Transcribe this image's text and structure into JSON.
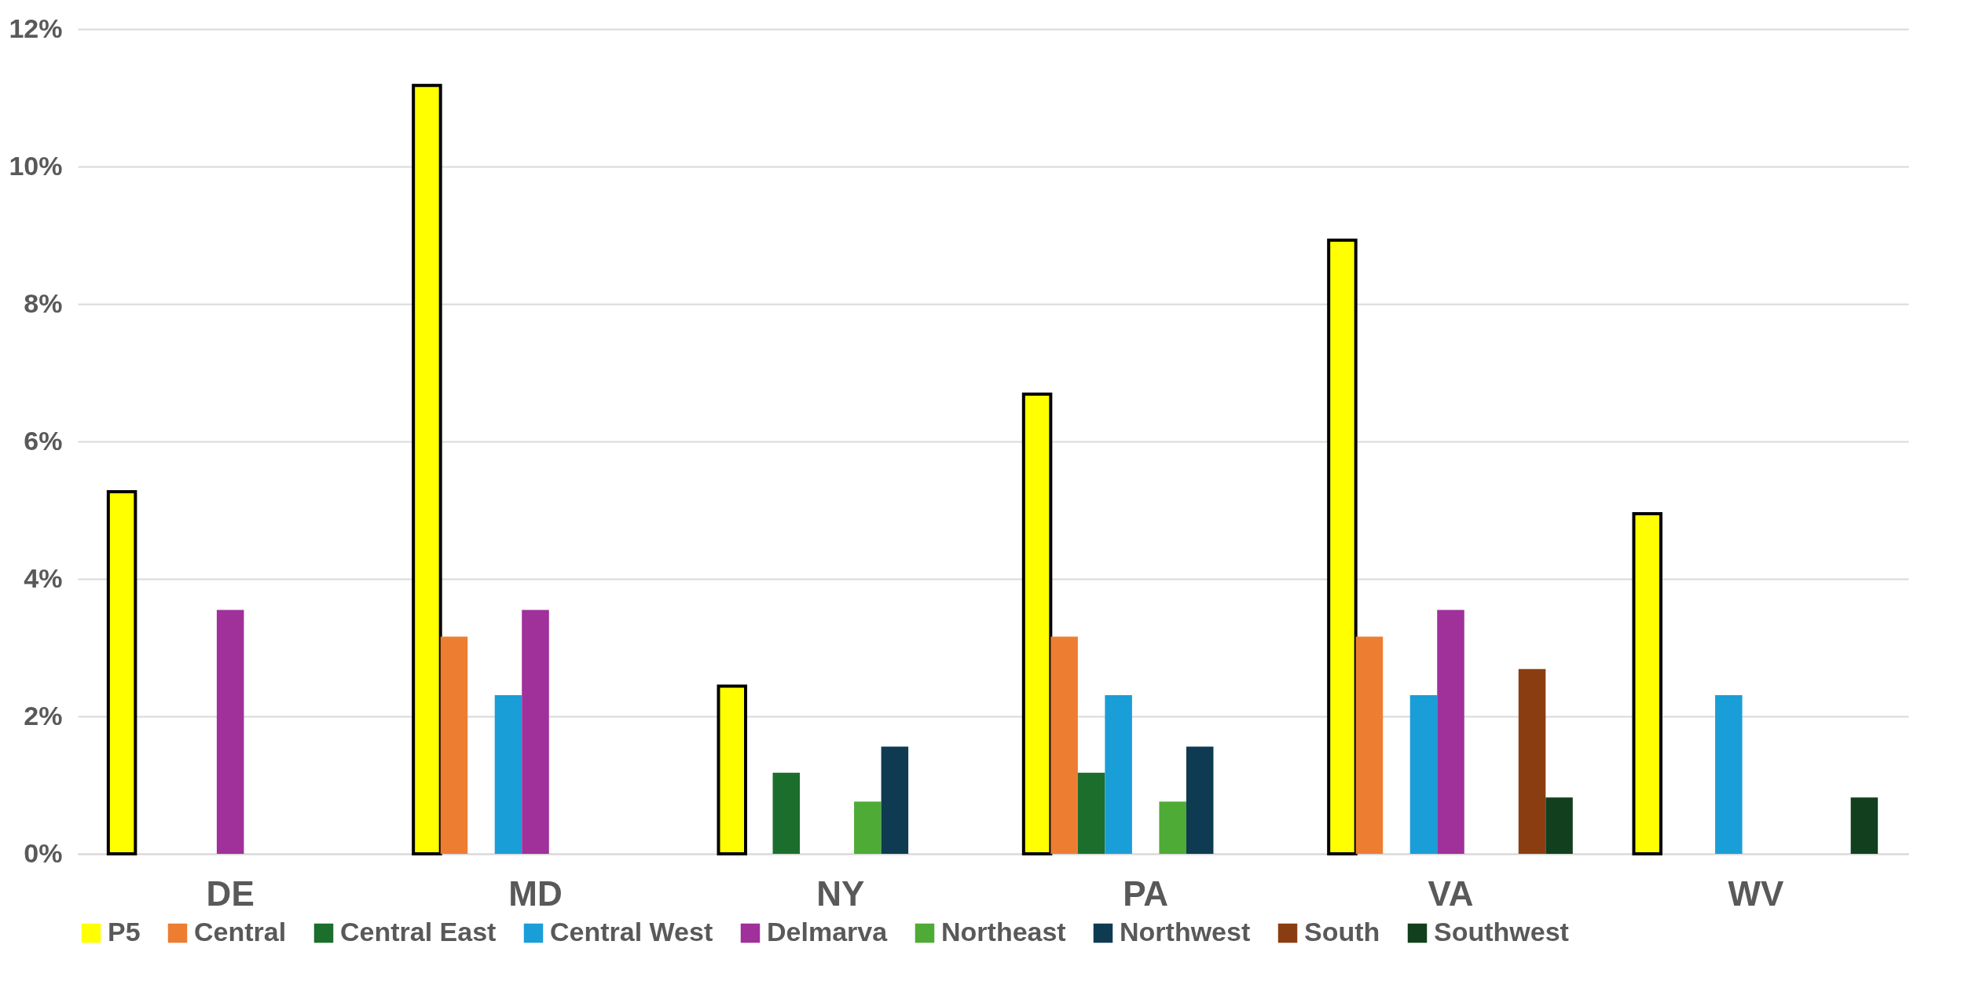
{
  "chart_data": {
    "type": "bar",
    "categories": [
      "DE",
      "MD",
      "NY",
      "PA",
      "VA",
      "WV"
    ],
    "series": [
      {
        "name": "P5",
        "color": "#ffff00",
        "values": [
          5.27,
          11.18,
          2.44,
          6.69,
          8.93,
          4.95
        ]
      },
      {
        "name": "Central",
        "color": "#ed7d31",
        "values": [
          null,
          3.16,
          null,
          3.16,
          3.16,
          null
        ]
      },
      {
        "name": "Central East",
        "color": "#1b6e2b",
        "values": [
          null,
          null,
          1.18,
          1.18,
          null,
          null
        ]
      },
      {
        "name": "Central West",
        "color": "#1a9ed8",
        "values": [
          null,
          2.31,
          null,
          2.31,
          2.31,
          2.31
        ]
      },
      {
        "name": "Delmarva",
        "color": "#a0309a",
        "values": [
          3.55,
          3.55,
          null,
          null,
          3.55,
          null
        ]
      },
      {
        "name": "Northeast",
        "color": "#4eab35",
        "values": [
          null,
          null,
          0.76,
          0.76,
          null,
          null
        ]
      },
      {
        "name": "Northwest",
        "color": "#0e3b52",
        "values": [
          null,
          null,
          1.56,
          1.56,
          null,
          null
        ]
      },
      {
        "name": "South",
        "color": "#8b3d12",
        "values": [
          null,
          null,
          null,
          null,
          2.69,
          null
        ]
      },
      {
        "name": "Southwest",
        "color": "#123f1e",
        "values": [
          null,
          null,
          null,
          null,
          0.82,
          0.82
        ]
      }
    ],
    "ylim": [
      0,
      12
    ],
    "yticks": [
      {
        "value": 0,
        "label": "0%"
      },
      {
        "value": 2,
        "label": "2%"
      },
      {
        "value": 4,
        "label": "4%"
      },
      {
        "value": 6,
        "label": "6%"
      },
      {
        "value": 8,
        "label": "8%"
      },
      {
        "value": 10,
        "label": "10%"
      },
      {
        "value": 12,
        "label": "12%"
      }
    ],
    "grid": "y",
    "legend": "bottom"
  }
}
